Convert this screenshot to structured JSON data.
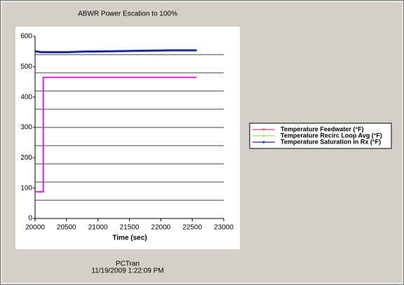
{
  "chart_data": {
    "type": "line",
    "title": "ABWR Power Escation to 100%",
    "x_label": "Time (sec)",
    "footer": [
      "PCTran",
      "11/19/2009 1:22:09 PM"
    ],
    "xlim": [
      20000,
      23000
    ],
    "xticks": [
      20000,
      20500,
      21000,
      21500,
      22000,
      22500,
      23000
    ],
    "ylim": [
      0,
      600
    ],
    "yticks": [
      0,
      100,
      200,
      300,
      400,
      500,
      600
    ],
    "ygrid": [
      60,
      120,
      180,
      240,
      300,
      360,
      420,
      480,
      540
    ],
    "series": [
      {
        "name": "Temperature Feedwater (°F)",
        "color": "#e020d0",
        "legend_color": "#ff4060",
        "x": [
          20000,
          20130,
          20130,
          22570
        ],
        "values": [
          88,
          88,
          465,
          465
        ]
      },
      {
        "name": "Temperature Recirc Loop Avg (°F)",
        "color": "#a0e060",
        "legend_color": "#a0e060",
        "x": [],
        "values": []
      },
      {
        "name": "Temperature Saturation  in Rx (°F)",
        "color": "#1a2a9a",
        "legend_color": "#1a2a9a",
        "x": [
          20000,
          20100,
          20500,
          20800,
          21200,
          21800,
          22200,
          22570
        ],
        "values": [
          551,
          548,
          548,
          550,
          551,
          553,
          554,
          554
        ]
      }
    ]
  }
}
